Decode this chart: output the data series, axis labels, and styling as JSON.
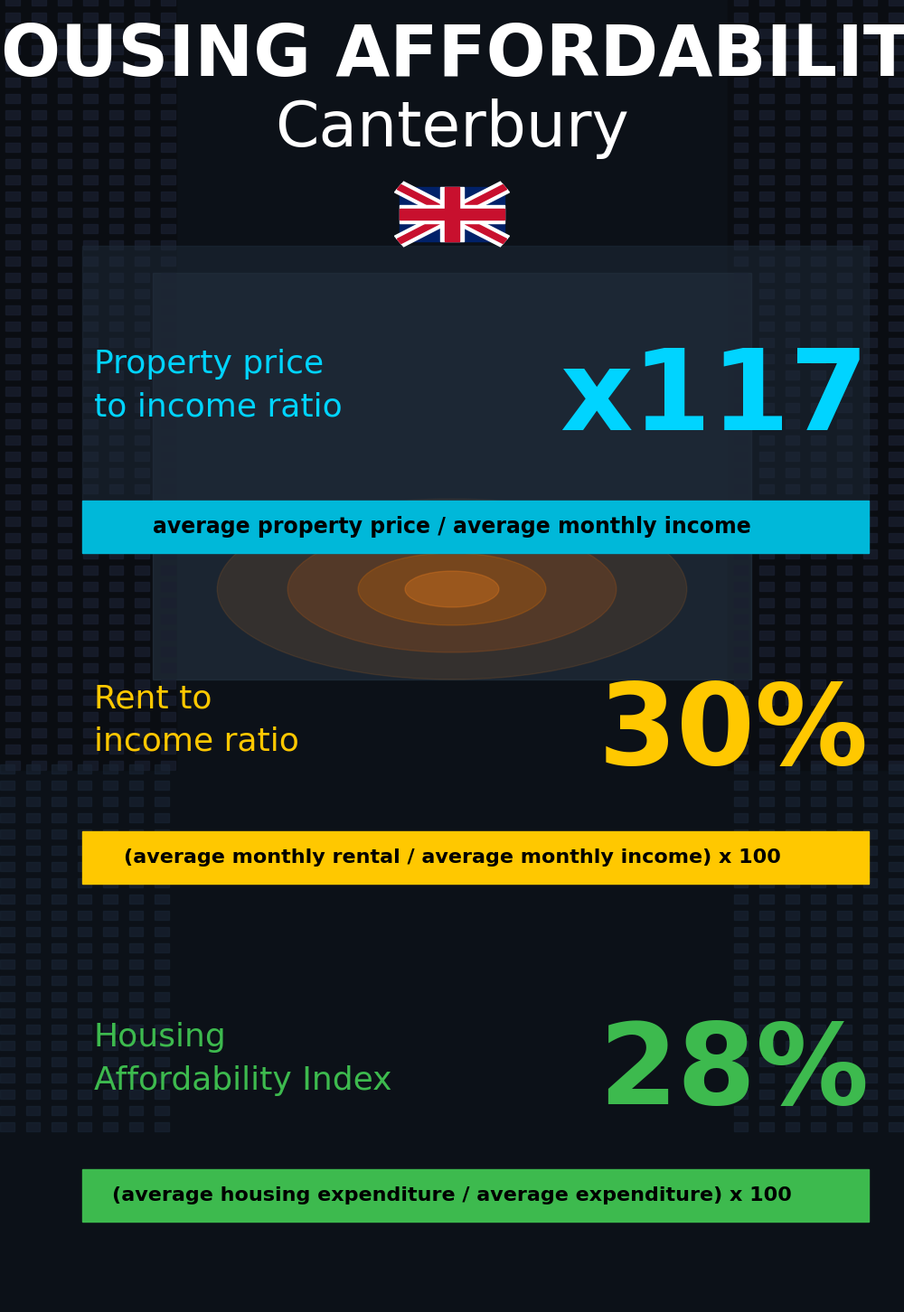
{
  "title_line1": "HOUSING AFFORDABILITY",
  "title_line2": "Canterbury",
  "section1_label": "Property price\nto income ratio",
  "section1_value": "x117",
  "section1_label_color": "#00d4ff",
  "section1_value_color": "#00d4ff",
  "section1_sublabel": "average property price / average monthly income",
  "section1_sublabel_bg": "#00b8d9",
  "section2_label": "Rent to\nincome ratio",
  "section2_value": "30%",
  "section2_label_color": "#ffc800",
  "section2_value_color": "#ffc800",
  "section2_sublabel": "(average monthly rental / average monthly income) x 100",
  "section2_sublabel_bg": "#ffc800",
  "section3_label": "Housing\nAffordability Index",
  "section3_value": "28%",
  "section3_label_color": "#3dba4e",
  "section3_value_color": "#3dba4e",
  "section3_sublabel": "(average housing expenditure / average expenditure) x 100",
  "section3_sublabel_bg": "#3dba4e",
  "title_color": "#ffffff",
  "subtitle_color": "#ffffff"
}
